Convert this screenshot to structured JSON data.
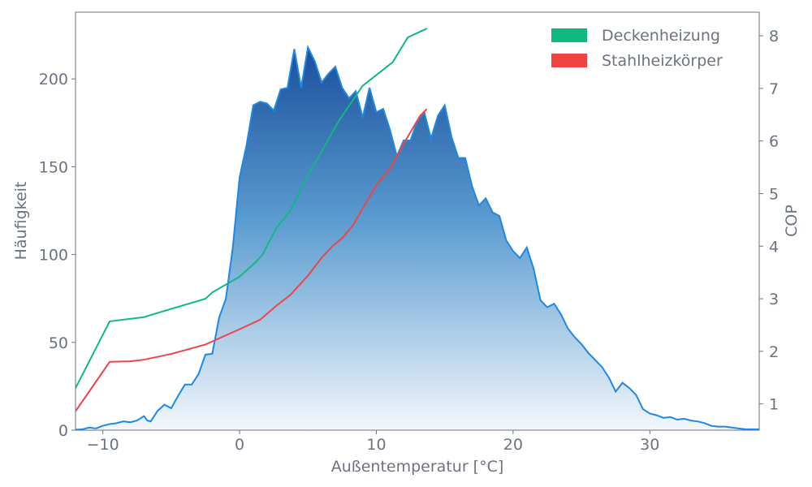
{
  "chart_data": {
    "type": "area",
    "xlabel": "Außentemperatur [°C]",
    "ylabel_left": "Häufigkeit",
    "ylabel_right": "COP",
    "xlim": [
      -12,
      38
    ],
    "ylim_left": [
      0,
      238
    ],
    "ylim_right": [
      0.5,
      8.45
    ],
    "x_ticks": [
      -10,
      0,
      10,
      20,
      30
    ],
    "x_tick_labels": [
      "−10",
      "0",
      "10",
      "20",
      "30"
    ],
    "y_left_ticks": [
      0,
      50,
      100,
      150,
      200
    ],
    "y_left_tick_labels": [
      "0",
      "50",
      "100",
      "150",
      "200"
    ],
    "y_right_ticks": [
      1,
      2,
      3,
      4,
      5,
      6,
      7,
      8
    ],
    "y_right_tick_labels": [
      "1",
      "2",
      "3",
      "4",
      "5",
      "6",
      "7",
      "8"
    ],
    "grid": false,
    "legend_position": "top-right",
    "colors": {
      "histogram_line": "#1e88e5",
      "histogram_fill_top": "#1a4f9c",
      "histogram_fill_bottom": "#f3f7fc",
      "deckenheizung": "#10b981",
      "stahlheizkoerper": "#ef4444",
      "axis": "#6b7280"
    },
    "series": [
      {
        "name": "",
        "axis": "left",
        "kind": "area",
        "x": [
          -12,
          -11.5,
          -11,
          -10.5,
          -10,
          -9.5,
          -9,
          -8.5,
          -8,
          -7.5,
          -7,
          -6.75,
          -6.5,
          -6,
          -5.5,
          -5,
          -4.5,
          -4,
          -3.5,
          -3,
          -2.5,
          -2,
          -1.5,
          -1,
          -0.5,
          0,
          0.5,
          1,
          1.5,
          2,
          2.5,
          3,
          3.5,
          4,
          4.5,
          5,
          5.5,
          6,
          6.5,
          7,
          7.5,
          8,
          8.5,
          9,
          9.5,
          10,
          10.5,
          11,
          11.5,
          12,
          12.5,
          13,
          13.5,
          14,
          14.5,
          15,
          15.5,
          16,
          16.5,
          17,
          17.5,
          18,
          18.5,
          19,
          19.5,
          20,
          20.5,
          21,
          21.5,
          22,
          22.5,
          23,
          23.5,
          24,
          24.5,
          25,
          25.5,
          26,
          26.5,
          27,
          27.5,
          28,
          28.5,
          29,
          29.5,
          30,
          30.5,
          31,
          31.5,
          32,
          32.5,
          33,
          33.5,
          34,
          34.5,
          35,
          35.5,
          36,
          36.5,
          37,
          37.5,
          38
        ],
        "values": [
          0.3,
          0.5,
          1.5,
          1,
          2.5,
          3.5,
          4,
          5,
          4.5,
          5.5,
          8,
          5.5,
          5,
          11,
          14.5,
          12.5,
          19.5,
          26,
          26,
          32,
          43,
          43.5,
          64,
          75,
          104,
          144,
          162,
          185,
          187,
          186,
          182,
          194,
          195,
          217,
          195,
          218,
          210,
          198,
          203,
          207,
          195,
          189,
          193,
          178,
          195,
          181,
          183,
          171,
          156,
          165,
          165,
          176,
          181,
          166,
          179,
          185,
          167,
          155,
          155,
          139,
          128,
          132,
          124,
          122,
          108,
          102,
          98,
          104,
          92,
          74,
          70,
          72,
          66,
          58,
          53,
          49,
          44,
          40,
          36,
          30,
          22,
          27,
          24,
          20,
          12,
          9.5,
          8.5,
          7,
          7.5,
          6,
          6.5,
          5.5,
          5,
          4,
          2.5,
          2,
          2,
          1.5,
          1,
          0.5,
          0.5,
          0.5
        ]
      },
      {
        "name": "Deckenheizung",
        "axis": "right",
        "kind": "line",
        "x": [
          -12,
          -9.5,
          -7,
          -6,
          -2.5,
          -2,
          0,
          1.2,
          1.7,
          2.7,
          3.7,
          5,
          6,
          7.3,
          9,
          11.2,
          12.3,
          13.7
        ],
        "values": [
          1.3,
          2.57,
          2.65,
          2.73,
          3.0,
          3.12,
          3.42,
          3.7,
          3.85,
          4.35,
          4.67,
          5.35,
          5.8,
          6.4,
          7.05,
          7.5,
          7.97,
          8.14
        ]
      },
      {
        "name": "Stahlheizkörper",
        "axis": "right",
        "kind": "line",
        "x": [
          -12,
          -9.5,
          -8,
          -7,
          -5,
          -2.5,
          0,
          1.5,
          2.7,
          3.7,
          5,
          6,
          6.8,
          7.5,
          8.3,
          9,
          10,
          11,
          12,
          13.2,
          13.7
        ],
        "values": [
          0.86,
          1.8,
          1.81,
          1.84,
          1.95,
          2.13,
          2.42,
          2.6,
          2.87,
          3.07,
          3.44,
          3.78,
          4.0,
          4.15,
          4.4,
          4.72,
          5.16,
          5.48,
          5.95,
          6.48,
          6.61
        ]
      }
    ]
  }
}
